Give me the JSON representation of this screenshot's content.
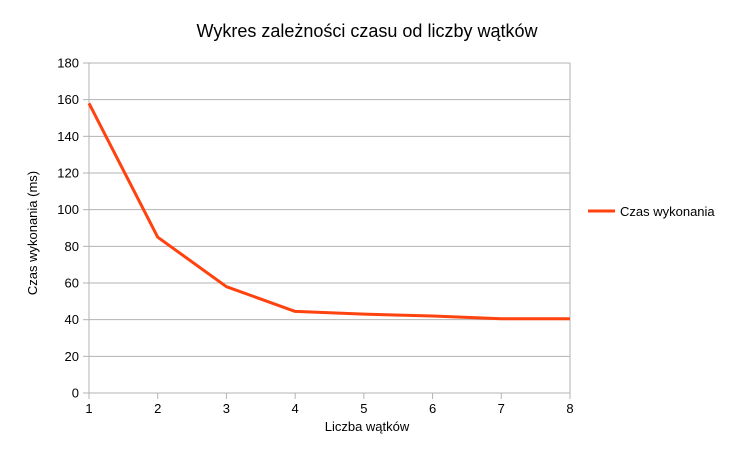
{
  "chart_data": {
    "type": "line",
    "title": "Wykres zależności czasu od liczby wątków",
    "xlabel": "Liczba wątków",
    "ylabel": "Czas wykonania (ms)",
    "x": [
      1,
      2,
      3,
      4,
      5,
      6,
      7,
      8
    ],
    "xlim": [
      1,
      8
    ],
    "ylim": [
      0,
      180
    ],
    "yticks": [
      0,
      20,
      40,
      60,
      80,
      100,
      120,
      140,
      160,
      180
    ],
    "xticks": [
      1,
      2,
      3,
      4,
      5,
      6,
      7,
      8
    ],
    "grid": true,
    "legend_position": "right",
    "series": [
      {
        "name": "Czas wykonania",
        "color": "#ff420e",
        "values": [
          158,
          85,
          58,
          44.5,
          43,
          42,
          40.5,
          40.5
        ]
      }
    ]
  }
}
